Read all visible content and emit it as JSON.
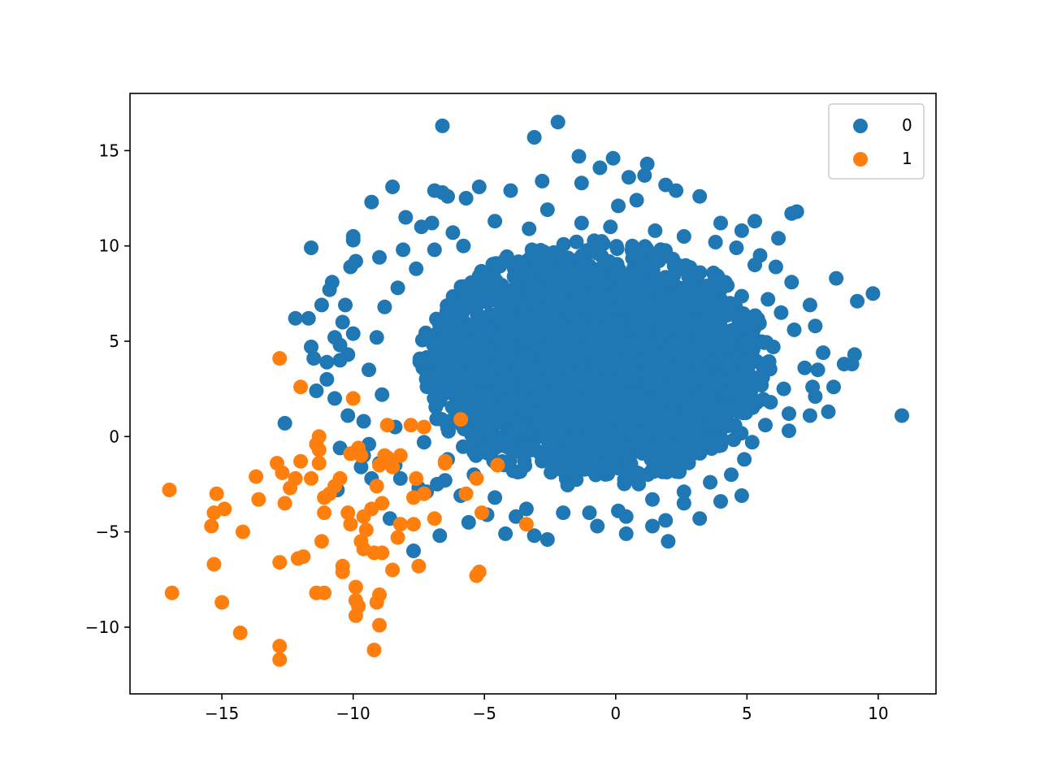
{
  "chart_data": {
    "type": "scatter",
    "title": "",
    "xlabel": "",
    "ylabel": "",
    "xlim": [
      -18.5,
      12.2
    ],
    "ylim": [
      -13.5,
      18.0
    ],
    "xticks": [
      -15,
      -10,
      -5,
      0,
      5,
      10
    ],
    "yticks": [
      -10,
      -5,
      0,
      5,
      10,
      15
    ],
    "grid": false,
    "legend_position": "top-right",
    "series": [
      {
        "name": "0",
        "color": "#1f77b4",
        "cloud": {
          "center": [
            -0.8,
            3.8
          ],
          "sd": [
            3.2,
            3.1
          ],
          "count": 4000
        },
        "points": [
          [
            -6.6,
            16.3
          ],
          [
            -2.2,
            16.5
          ],
          [
            -3.1,
            15.7
          ],
          [
            -0.1,
            14.6
          ],
          [
            -0.6,
            14.1
          ],
          [
            1.2,
            14.3
          ],
          [
            -1.4,
            14.7
          ],
          [
            1.1,
            13.7
          ],
          [
            0.5,
            13.6
          ],
          [
            1.9,
            13.2
          ],
          [
            -1.3,
            13.3
          ],
          [
            -2.8,
            13.4
          ],
          [
            -8.5,
            13.1
          ],
          [
            -5.2,
            13.1
          ],
          [
            -6.6,
            12.8
          ],
          [
            -6.9,
            12.9
          ],
          [
            -9.3,
            12.3
          ],
          [
            3.2,
            12.6
          ],
          [
            2.3,
            12.9
          ],
          [
            0.8,
            12.4
          ],
          [
            -4.0,
            12.9
          ],
          [
            -5.7,
            12.5
          ],
          [
            -6.4,
            12.6
          ],
          [
            6.9,
            11.8
          ],
          [
            6.7,
            11.7
          ],
          [
            5.3,
            11.3
          ],
          [
            4.0,
            11.2
          ],
          [
            -8.0,
            11.5
          ],
          [
            -7.0,
            11.2
          ],
          [
            -7.4,
            11.0
          ],
          [
            -10.0,
            10.3
          ],
          [
            -10.0,
            10.5
          ],
          [
            -11.6,
            9.9
          ],
          [
            -9.9,
            9.2
          ],
          [
            -8.1,
            9.8
          ],
          [
            -9.0,
            9.4
          ],
          [
            -10.1,
            8.9
          ],
          [
            4.8,
            10.8
          ],
          [
            6.2,
            10.4
          ],
          [
            5.3,
            9.0
          ],
          [
            6.1,
            8.9
          ],
          [
            6.7,
            8.1
          ],
          [
            8.4,
            8.3
          ],
          [
            9.8,
            7.5
          ],
          [
            9.2,
            7.1
          ],
          [
            7.4,
            6.9
          ],
          [
            7.6,
            5.8
          ],
          [
            6.8,
            5.6
          ],
          [
            7.2,
            3.6
          ],
          [
            7.7,
            3.5
          ],
          [
            7.5,
            2.6
          ],
          [
            8.3,
            2.6
          ],
          [
            7.6,
            2.1
          ],
          [
            8.1,
            1.3
          ],
          [
            7.4,
            1.1
          ],
          [
            6.6,
            1.2
          ],
          [
            6.6,
            0.3
          ],
          [
            7.9,
            4.4
          ],
          [
            8.7,
            3.8
          ],
          [
            9.1,
            4.3
          ],
          [
            9.0,
            3.8
          ],
          [
            10.9,
            1.1
          ],
          [
            -12.6,
            0.7
          ],
          [
            -12.2,
            6.2
          ],
          [
            -11.7,
            6.2
          ],
          [
            -11.2,
            6.9
          ],
          [
            -10.9,
            7.7
          ],
          [
            -10.8,
            8.1
          ],
          [
            -11.6,
            4.7
          ],
          [
            -11.5,
            4.1
          ],
          [
            -11.0,
            3.9
          ],
          [
            -11.0,
            3.0
          ],
          [
            -11.4,
            2.4
          ],
          [
            -10.7,
            2.0
          ],
          [
            -10.5,
            4.0
          ],
          [
            -10.2,
            4.3
          ],
          [
            -10.2,
            1.1
          ],
          [
            -9.6,
            0.8
          ],
          [
            -10.0,
            5.4
          ],
          [
            -10.4,
            6.0
          ],
          [
            -10.3,
            6.9
          ],
          [
            -10.7,
            5.2
          ],
          [
            -10.5,
            4.8
          ],
          [
            -10.5,
            -0.6
          ],
          [
            -9.7,
            -1.6
          ],
          [
            -9.4,
            -0.4
          ],
          [
            -9.0,
            -1.4
          ],
          [
            -8.4,
            -1.5
          ],
          [
            -8.2,
            -2.2
          ],
          [
            -7.5,
            -2.7
          ],
          [
            -7.2,
            -2.9
          ],
          [
            -6.8,
            -2.5
          ],
          [
            -6.5,
            -2.3
          ],
          [
            -5.9,
            -3.1
          ],
          [
            -5.6,
            -4.5
          ],
          [
            -4.9,
            -4.1
          ],
          [
            -4.2,
            -5.1
          ],
          [
            -3.8,
            -4.2
          ],
          [
            -3.1,
            -5.2
          ],
          [
            -2.6,
            -5.4
          ],
          [
            -2.0,
            -4.0
          ],
          [
            -1.0,
            -4.0
          ],
          [
            -0.7,
            -4.7
          ],
          [
            0.1,
            -3.9
          ],
          [
            0.4,
            -4.2
          ],
          [
            0.4,
            -5.1
          ],
          [
            1.4,
            -4.7
          ],
          [
            1.9,
            -4.4
          ],
          [
            2.0,
            -5.5
          ],
          [
            2.6,
            -3.5
          ],
          [
            3.2,
            -4.3
          ],
          [
            4.0,
            -3.4
          ],
          [
            4.8,
            -3.1
          ],
          [
            4.4,
            -2.0
          ],
          [
            -6.7,
            -5.2
          ],
          [
            -7.7,
            -6.0
          ],
          [
            -8.6,
            -4.3
          ],
          [
            -9.6,
            -1.0
          ],
          [
            -10.6,
            -2.8
          ],
          [
            -9.3,
            -2.2
          ],
          [
            -1.3,
            11.2
          ],
          [
            -0.2,
            11.0
          ],
          [
            1.5,
            10.8
          ],
          [
            2.6,
            10.5
          ],
          [
            3.8,
            10.2
          ],
          [
            4.6,
            9.9
          ],
          [
            5.5,
            9.5
          ],
          [
            -4.6,
            11.3
          ],
          [
            -3.3,
            10.9
          ],
          [
            -2.6,
            11.9
          ],
          [
            0.1,
            12.1
          ],
          [
            -5.8,
            10.0
          ],
          [
            5.8,
            7.2
          ],
          [
            6.3,
            6.5
          ],
          [
            6.0,
            4.7
          ],
          [
            5.6,
            3.1
          ],
          [
            6.4,
            2.5
          ],
          [
            5.9,
            1.8
          ],
          [
            5.7,
            0.6
          ],
          [
            5.2,
            -0.3
          ],
          [
            4.9,
            -1.2
          ],
          [
            3.6,
            -2.4
          ],
          [
            2.6,
            -2.9
          ],
          [
            1.4,
            -3.3
          ],
          [
            -3.4,
            -3.8
          ],
          [
            -4.6,
            -3.2
          ],
          [
            -5.4,
            -2.0
          ],
          [
            -6.4,
            -1.2
          ],
          [
            -7.3,
            -0.3
          ],
          [
            -8.4,
            0.5
          ],
          [
            -8.9,
            2.2
          ],
          [
            -9.4,
            3.5
          ],
          [
            -9.1,
            5.2
          ],
          [
            -8.8,
            6.8
          ],
          [
            -8.3,
            7.8
          ],
          [
            -7.6,
            8.8
          ],
          [
            -6.9,
            9.8
          ],
          [
            -6.2,
            10.7
          ]
        ]
      },
      {
        "name": "1",
        "color": "#ff7f0e",
        "points": [
          [
            -12.8,
            4.1
          ],
          [
            -12.0,
            2.6
          ],
          [
            -10.0,
            2.0
          ],
          [
            -17.0,
            -2.8
          ],
          [
            -16.9,
            -8.2
          ],
          [
            -15.4,
            -4.7
          ],
          [
            -15.3,
            -4.0
          ],
          [
            -15.2,
            -3.0
          ],
          [
            -14.9,
            -3.8
          ],
          [
            -15.3,
            -6.7
          ],
          [
            -15.0,
            -8.7
          ],
          [
            -14.3,
            -10.3
          ],
          [
            -14.2,
            -5.0
          ],
          [
            -13.6,
            -3.3
          ],
          [
            -13.7,
            -2.1
          ],
          [
            -12.9,
            -1.4
          ],
          [
            -12.7,
            -1.9
          ],
          [
            -12.6,
            -3.5
          ],
          [
            -12.4,
            -2.7
          ],
          [
            -12.2,
            -2.2
          ],
          [
            -12.0,
            -1.3
          ],
          [
            -12.8,
            -6.6
          ],
          [
            -12.1,
            -6.4
          ],
          [
            -11.9,
            -6.3
          ],
          [
            -12.8,
            -11.0
          ],
          [
            -12.8,
            -11.7
          ],
          [
            -11.6,
            -2.2
          ],
          [
            -11.3,
            -1.4
          ],
          [
            -11.4,
            -0.4
          ],
          [
            -11.3,
            -0.7
          ],
          [
            -11.3,
            0.0
          ],
          [
            -11.1,
            -3.2
          ],
          [
            -11.1,
            -4.0
          ],
          [
            -10.7,
            -2.6
          ],
          [
            -10.9,
            -3.0
          ],
          [
            -10.5,
            -2.2
          ],
          [
            -11.2,
            -5.5
          ],
          [
            -11.4,
            -8.2
          ],
          [
            -11.1,
            -8.2
          ],
          [
            -10.4,
            -6.8
          ],
          [
            -10.4,
            -7.1
          ],
          [
            -10.2,
            -4.0
          ],
          [
            -10.1,
            -4.6
          ],
          [
            -9.9,
            -7.9
          ],
          [
            -9.9,
            -8.6
          ],
          [
            -9.8,
            -8.9
          ],
          [
            -9.9,
            -9.4
          ],
          [
            -9.7,
            -5.5
          ],
          [
            -9.6,
            -5.9
          ],
          [
            -9.5,
            -4.9
          ],
          [
            -9.6,
            -4.2
          ],
          [
            -10.1,
            -0.9
          ],
          [
            -9.8,
            -0.6
          ],
          [
            -9.7,
            -1.0
          ],
          [
            -9.3,
            -3.8
          ],
          [
            -9.2,
            -6.1
          ],
          [
            -8.9,
            -6.1
          ],
          [
            -9.1,
            -2.6
          ],
          [
            -9.0,
            -1.5
          ],
          [
            -8.8,
            -1.0
          ],
          [
            -8.9,
            -3.5
          ],
          [
            -8.7,
            -1.1
          ],
          [
            -8.5,
            -1.6
          ],
          [
            -8.5,
            -7.0
          ],
          [
            -9.0,
            -8.3
          ],
          [
            -9.1,
            -8.7
          ],
          [
            -9.0,
            -9.9
          ],
          [
            -9.2,
            -11.2
          ],
          [
            -8.7,
            0.6
          ],
          [
            -8.2,
            -1.0
          ],
          [
            -7.8,
            0.6
          ],
          [
            -7.6,
            -2.2
          ],
          [
            -7.7,
            -3.2
          ],
          [
            -7.7,
            -4.6
          ],
          [
            -8.2,
            -4.6
          ],
          [
            -8.3,
            -5.3
          ],
          [
            -7.3,
            -3.0
          ],
          [
            -7.5,
            -6.8
          ],
          [
            -7.3,
            0.5
          ],
          [
            -6.9,
            -4.3
          ],
          [
            -6.5,
            -1.3
          ],
          [
            -6.5,
            -1.4
          ],
          [
            -5.9,
            0.9
          ],
          [
            -5.7,
            -3.0
          ],
          [
            -5.3,
            -2.2
          ],
          [
            -5.1,
            -4.0
          ],
          [
            -5.3,
            -7.3
          ],
          [
            -5.2,
            -7.1
          ],
          [
            -4.5,
            -1.5
          ],
          [
            -3.4,
            -4.6
          ]
        ]
      }
    ]
  }
}
